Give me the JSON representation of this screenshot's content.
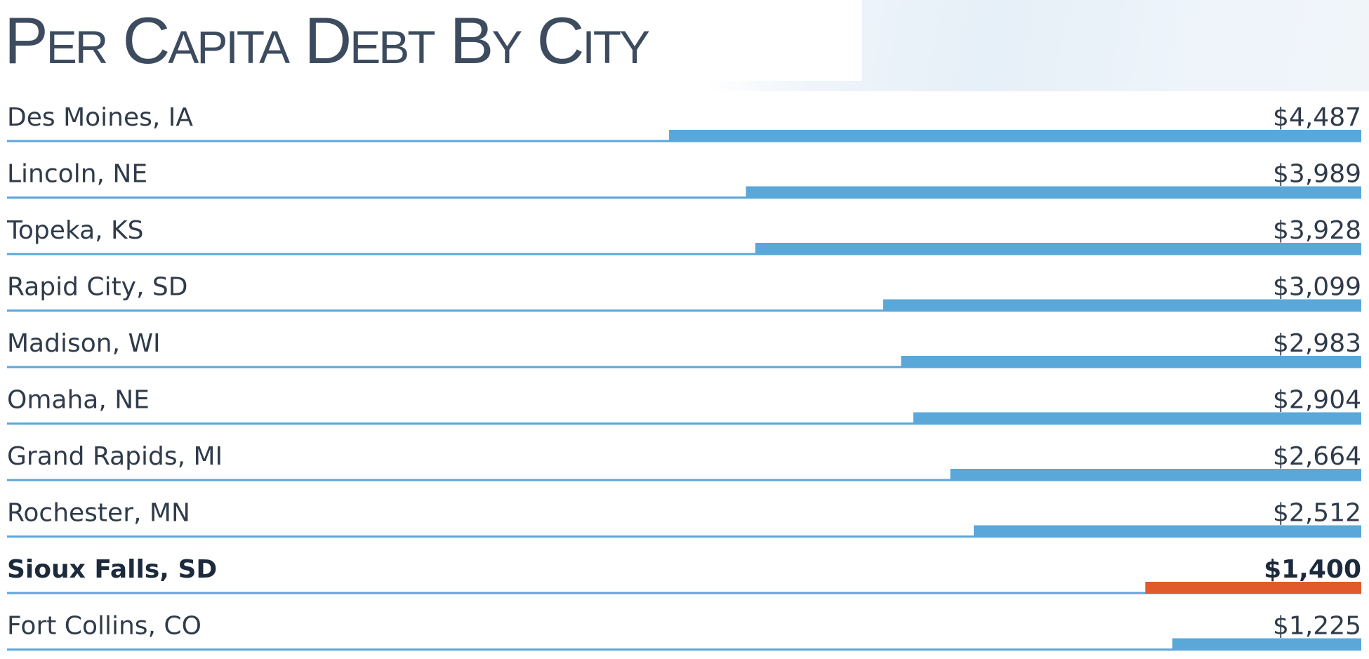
{
  "title": "Per Capita Debt By City",
  "chart_data": {
    "type": "bar",
    "orientation": "horizontal",
    "title": "Per Capita Debt By City",
    "categories": [
      "Des Moines, IA",
      "Lincoln, NE",
      "Topeka, KS",
      "Rapid City, SD",
      "Madison, WI",
      "Omaha, NE",
      "Grand Rapids, MI",
      "Rochester, MN",
      "Sioux Falls, SD",
      "Fort Collins, CO"
    ],
    "values": [
      4487,
      3989,
      3928,
      3099,
      2983,
      2904,
      2664,
      2512,
      1400,
      1225
    ],
    "value_labels": [
      "$4,487",
      "$3,989",
      "$3,928",
      "$3,099",
      "$2,983",
      "$2,904",
      "$2,664",
      "$2,512",
      "$1,400",
      "$1,225"
    ],
    "highlight": "Sioux Falls, SD",
    "colors": {
      "bar": "#5aa7da",
      "highlight_bar": "#e05a2c",
      "baseline": "#5aa7da",
      "text": "#2f3b4a",
      "title": "#3d4b5f"
    },
    "grid": false,
    "legend": "none"
  }
}
